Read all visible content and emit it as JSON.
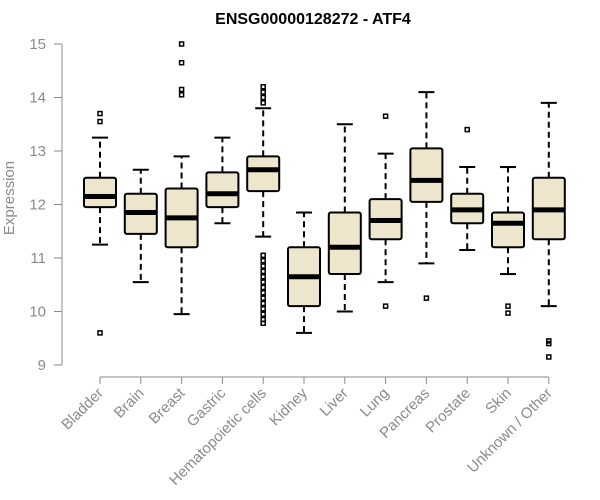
{
  "chart_data": {
    "type": "boxplot",
    "title": "ENSG00000128272 - ATF4",
    "xlabel": "",
    "ylabel": "Expression",
    "ylim": [
      9,
      15
    ],
    "yticks": [
      9,
      10,
      11,
      12,
      13,
      14,
      15
    ],
    "box_color": "#ede6cd",
    "categories": [
      "Bladder",
      "Brain",
      "Breast",
      "Gastric",
      "Hematopoietic cells",
      "Kidney",
      "Liver",
      "Lung",
      "Pancreas",
      "Prostate",
      "Skin",
      "Unknown / Other"
    ],
    "boxes": [
      {
        "min": 11.25,
        "q1": 11.95,
        "median": 12.15,
        "q3": 12.5,
        "max": 13.25,
        "outliers": [
          13.55,
          13.7,
          9.6
        ]
      },
      {
        "min": 10.55,
        "q1": 11.45,
        "median": 11.85,
        "q3": 12.2,
        "max": 12.65,
        "outliers": []
      },
      {
        "min": 9.95,
        "q1": 11.2,
        "median": 11.75,
        "q3": 12.3,
        "max": 12.9,
        "outliers": [
          14.05,
          14.15,
          14.65,
          15.0
        ]
      },
      {
        "min": 11.65,
        "q1": 11.95,
        "median": 12.2,
        "q3": 12.6,
        "max": 13.25,
        "outliers": []
      },
      {
        "min": 11.4,
        "q1": 12.25,
        "median": 12.65,
        "q3": 12.9,
        "max": 13.8,
        "outliers": [
          13.9,
          14.0,
          14.1,
          14.2,
          11.05,
          10.95,
          10.85,
          10.75,
          10.65,
          10.55,
          10.45,
          10.35,
          10.25,
          10.15,
          10.05,
          9.95,
          9.85,
          9.78
        ]
      },
      {
        "min": 9.6,
        "q1": 10.1,
        "median": 10.65,
        "q3": 11.2,
        "max": 11.85,
        "outliers": []
      },
      {
        "min": 10.0,
        "q1": 10.7,
        "median": 11.2,
        "q3": 11.85,
        "max": 13.5,
        "outliers": []
      },
      {
        "min": 10.55,
        "q1": 11.35,
        "median": 11.7,
        "q3": 12.1,
        "max": 12.95,
        "outliers": [
          13.65,
          10.1
        ]
      },
      {
        "min": 10.9,
        "q1": 12.05,
        "median": 12.45,
        "q3": 13.05,
        "max": 14.1,
        "outliers": [
          10.25
        ]
      },
      {
        "min": 11.15,
        "q1": 11.65,
        "median": 11.9,
        "q3": 12.2,
        "max": 12.7,
        "outliers": [
          13.4
        ]
      },
      {
        "min": 10.7,
        "q1": 11.2,
        "median": 11.65,
        "q3": 11.85,
        "max": 12.7,
        "outliers": [
          10.1,
          9.97
        ]
      },
      {
        "min": 10.1,
        "q1": 11.35,
        "median": 11.9,
        "q3": 12.5,
        "max": 13.9,
        "outliers": [
          9.45,
          9.4,
          9.15
        ]
      }
    ]
  }
}
